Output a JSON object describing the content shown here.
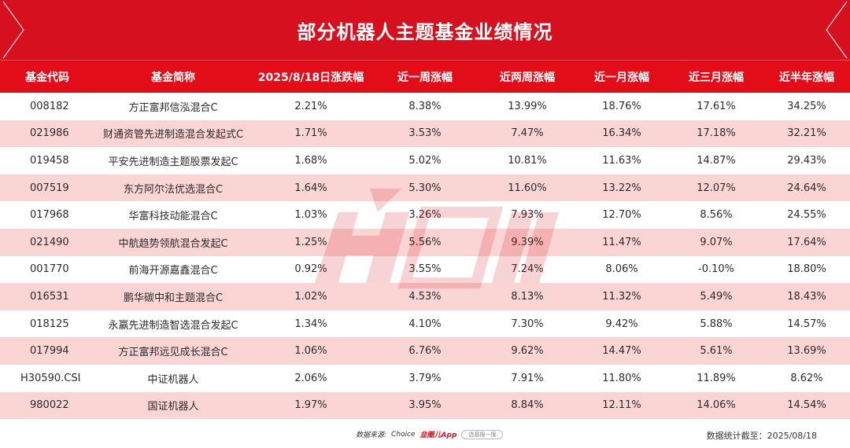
{
  "title": "部分机器人主题基金业绩情况",
  "colors": {
    "header_red": "#e30d1a",
    "title_red": "#d7101f",
    "alt_row": "#fbd4d4"
  },
  "columns": [
    "基金代码",
    "基金简称",
    "2025/8/18日涨跌幅",
    "近一周涨幅",
    "近两周涨幅",
    "近一月涨幅",
    "近三月涨幅",
    "近半年涨幅"
  ],
  "rows": [
    [
      "008182",
      "方正富邦信泓混合C",
      "2.21%",
      "8.38%",
      "13.99%",
      "18.76%",
      "17.61%",
      "34.25%"
    ],
    [
      "021986",
      "财通资管先进制造混合发起式C",
      "1.71%",
      "3.53%",
      "7.47%",
      "16.34%",
      "17.18%",
      "32.21%"
    ],
    [
      "019458",
      "平安先进制造主题股票发起C",
      "1.68%",
      "5.02%",
      "10.81%",
      "11.63%",
      "14.87%",
      "29.43%"
    ],
    [
      "007519",
      "东方阿尔法优选混合C",
      "1.64%",
      "5.30%",
      "11.60%",
      "13.22%",
      "12.07%",
      "24.64%"
    ],
    [
      "017968",
      "华富科技动能混合C",
      "1.03%",
      "3.26%",
      "7.93%",
      "12.70%",
      "8.56%",
      "24.55%"
    ],
    [
      "021490",
      "中航趋势领航混合发起C",
      "1.25%",
      "5.56%",
      "9.39%",
      "11.47%",
      "9.07%",
      "17.64%"
    ],
    [
      "001770",
      "前海开源嘉鑫混合C",
      "0.92%",
      "3.55%",
      "7.24%",
      "8.06%",
      "-0.10%",
      "18.80%"
    ],
    [
      "016531",
      "鹏华碳中和主题混合C",
      "1.02%",
      "4.53%",
      "8.13%",
      "11.32%",
      "5.49%",
      "18.43%"
    ],
    [
      "018125",
      "永赢先进制造智选混合发起C",
      "1.34%",
      "4.10%",
      "7.30%",
      "9.42%",
      "5.88%",
      "14.57%"
    ],
    [
      "017994",
      "方正富邦远见成长混合C",
      "1.06%",
      "6.76%",
      "9.62%",
      "14.47%",
      "5.61%",
      "13.69%"
    ],
    [
      "H30590.CSI",
      "中证机器人",
      "2.06%",
      "3.79%",
      "7.91%",
      "11.80%",
      "11.89%",
      "8.62%"
    ],
    [
      "980022",
      "国证机器人",
      "1.97%",
      "3.95%",
      "8.84%",
      "12.11%",
      "14.06%",
      "14.54%"
    ]
  ],
  "footer": {
    "source_label": "数据来源:",
    "source_choice": "Choice",
    "source_brand": "韭圈儿App",
    "search_pill": "选基搜一搜",
    "date_label": "数据统计截至：",
    "date_value": "2025/08/18"
  }
}
